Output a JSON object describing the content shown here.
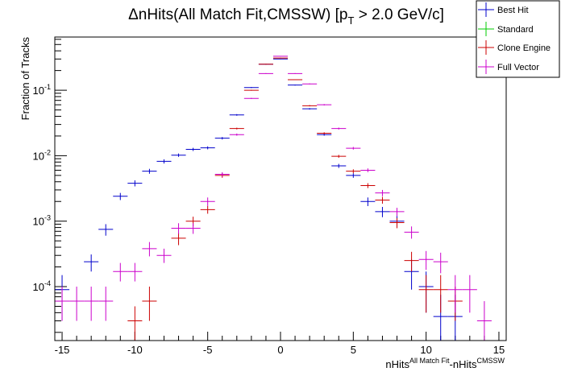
{
  "chart_data": {
    "type": "scatter",
    "title": "ΔnHits(All Match Fit,CMSSW) [p",
    "title_sub": "T",
    "title_tail": " > 2.0 GeV/c]",
    "ylabel": "Fraction of Tracks",
    "xlabel_parts": [
      "nHits",
      "All Match Fit",
      "-nHits",
      "CMSSW"
    ],
    "x_ticks": [
      "-15",
      "-10",
      "-5",
      "0",
      "5",
      "10",
      "15"
    ],
    "y_tick_bases": [
      "10",
      "10",
      "10",
      "10"
    ],
    "y_tick_exps": [
      "-4",
      "-3",
      "-2",
      "-1"
    ],
    "xlim": [
      -15.5,
      15.5
    ],
    "ylim": [
      1.5e-05,
      0.65
    ],
    "yscale": "log",
    "legend_position": "top-right",
    "series": [
      {
        "name": "Best Hit",
        "color": "#0000cc",
        "points": [
          [
            -15,
            9e-05
          ],
          [
            -13,
            0.00024
          ],
          [
            -12,
            0.00075
          ],
          [
            -11,
            0.0024
          ],
          [
            -10,
            0.0038
          ],
          [
            -9,
            0.0058
          ],
          [
            -8,
            0.0082
          ],
          [
            -7,
            0.0102
          ],
          [
            -6,
            0.0125
          ],
          [
            -5,
            0.0132
          ],
          [
            -4,
            0.0185
          ],
          [
            -3,
            0.042
          ],
          [
            -2,
            0.11
          ],
          [
            -1,
            0.25
          ],
          [
            0,
            0.3
          ],
          [
            1,
            0.12
          ],
          [
            2,
            0.052
          ],
          [
            3,
            0.021
          ],
          [
            4,
            0.007
          ],
          [
            5,
            0.005
          ],
          [
            6,
            0.002
          ],
          [
            7,
            0.0014
          ],
          [
            8,
            0.001
          ],
          [
            9,
            0.00017
          ],
          [
            10,
            0.0001
          ],
          [
            11,
            3.5e-05
          ],
          [
            12,
            3.5e-05
          ]
        ],
        "yerr_low": [
          6e-05,
          7e-05,
          0.00015,
          0.0003,
          0.0004,
          0.0005,
          0.0006,
          0.0006,
          0.0007,
          0.0007,
          0.0008,
          0.0012,
          0.002,
          0.003,
          0.003,
          0.002,
          0.0013,
          0.0008,
          0.0005,
          0.0004,
          0.0003,
          0.00025,
          0.0002,
          8e-05,
          6e-05,
          2e-05,
          2e-05
        ],
        "yerr_high": [
          6e-05,
          7e-05,
          0.00015,
          0.0003,
          0.0004,
          0.0005,
          0.0006,
          0.0006,
          0.0007,
          0.0007,
          0.0008,
          0.0012,
          0.002,
          0.003,
          0.003,
          0.002,
          0.0013,
          0.0008,
          0.0005,
          0.0004,
          0.0003,
          0.00025,
          0.0002,
          9e-05,
          7e-05,
          4e-05,
          4e-05
        ]
      },
      {
        "name": "Standard",
        "color": "#00cc00",
        "points": [],
        "yerr_low": [],
        "yerr_high": []
      },
      {
        "name": "Clone Engine",
        "color": "#cc0000",
        "points": [
          [
            -10,
            3e-05
          ],
          [
            -9,
            6e-05
          ],
          [
            -7,
            0.00055
          ],
          [
            -6,
            0.001
          ],
          [
            -5,
            0.0015
          ],
          [
            -4,
            0.005
          ],
          [
            -3,
            0.026
          ],
          [
            -2,
            0.1
          ],
          [
            -1,
            0.25
          ],
          [
            0,
            0.31
          ],
          [
            1,
            0.145
          ],
          [
            2,
            0.058
          ],
          [
            3,
            0.022
          ],
          [
            4,
            0.0098
          ],
          [
            5,
            0.0058
          ],
          [
            6,
            0.0035
          ],
          [
            7,
            0.0021
          ],
          [
            8,
            0.00095
          ],
          [
            9,
            0.00025
          ],
          [
            10,
            9e-05
          ],
          [
            11,
            9e-05
          ],
          [
            12,
            6e-05
          ]
        ],
        "yerr_low": [
          1.5e-05,
          3e-05,
          0.00012,
          0.00017,
          0.0002,
          0.0004,
          0.0008,
          0.0017,
          0.003,
          0.003,
          0.002,
          0.0013,
          0.0008,
          0.0005,
          0.0004,
          0.0003,
          0.00025,
          0.00017,
          8e-05,
          5e-05,
          5e-05,
          3e-05
        ],
        "yerr_high": [
          2e-05,
          4e-05,
          0.00012,
          0.00017,
          0.0002,
          0.0004,
          0.0008,
          0.0017,
          0.003,
          0.003,
          0.002,
          0.0013,
          0.0008,
          0.0005,
          0.0004,
          0.0003,
          0.00025,
          0.00017,
          9e-05,
          6e-05,
          6e-05,
          4e-05
        ]
      },
      {
        "name": "Full Vector",
        "color": "#cc00cc",
        "points": [
          [
            -15,
            6e-05
          ],
          [
            -14,
            6e-05
          ],
          [
            -13,
            6e-05
          ],
          [
            -12,
            6e-05
          ],
          [
            -11,
            0.00017
          ],
          [
            -10,
            0.00017
          ],
          [
            -9,
            0.00038
          ],
          [
            -8,
            0.0003
          ],
          [
            -7,
            0.00078
          ],
          [
            -6,
            0.00078
          ],
          [
            -5,
            0.002
          ],
          [
            -4,
            0.0052
          ],
          [
            -3,
            0.021
          ],
          [
            -2,
            0.075
          ],
          [
            -1,
            0.18
          ],
          [
            0,
            0.33
          ],
          [
            1,
            0.18
          ],
          [
            2,
            0.125
          ],
          [
            3,
            0.06
          ],
          [
            4,
            0.026
          ],
          [
            5,
            0.013
          ],
          [
            6,
            0.006
          ],
          [
            7,
            0.0027
          ],
          [
            8,
            0.0014
          ],
          [
            9,
            0.00068
          ],
          [
            10,
            0.00026
          ],
          [
            11,
            0.00024
          ],
          [
            12,
            9e-05
          ],
          [
            13,
            9e-05
          ],
          [
            14,
            3e-05
          ]
        ],
        "yerr_low": [
          3e-05,
          3e-05,
          3e-05,
          3e-05,
          5e-05,
          5e-05,
          9e-05,
          7e-05,
          0.00014,
          0.00014,
          0.0003,
          0.0004,
          0.0008,
          0.0015,
          0.0025,
          0.003,
          0.0025,
          0.002,
          0.0014,
          0.0009,
          0.0006,
          0.0004,
          0.0003,
          0.0002,
          0.00014,
          8e-05,
          8e-05,
          5e-05,
          5e-05,
          1.5e-05
        ],
        "yerr_high": [
          4e-05,
          4e-05,
          4e-05,
          4e-05,
          6e-05,
          6e-05,
          0.0001,
          8e-05,
          0.00015,
          0.00015,
          0.0003,
          0.0004,
          0.0008,
          0.0015,
          0.0025,
          0.003,
          0.0025,
          0.002,
          0.0014,
          0.0009,
          0.0006,
          0.0004,
          0.0003,
          0.0002,
          0.00015,
          9e-05,
          9e-05,
          6e-05,
          6e-05,
          3e-05
        ]
      }
    ]
  }
}
